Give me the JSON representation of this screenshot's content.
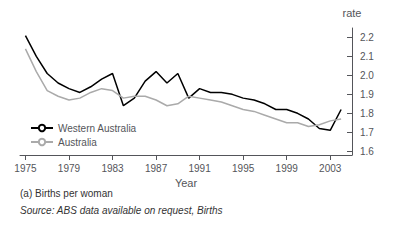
{
  "chart_data": {
    "type": "line",
    "xlabel": "Year",
    "ylabel": "rate",
    "annotations": [
      "(a) Births per woman",
      "Source: ABS data available on request, Births"
    ],
    "xlim": [
      1974.5,
      2005
    ],
    "ylim": [
      1.58,
      2.25
    ],
    "xticks": [
      1975,
      1979,
      1983,
      1987,
      1991,
      1995,
      1999,
      2003
    ],
    "yticks": [
      1.6,
      1.7,
      1.8,
      1.9,
      {
        "value": 2,
        "label": "2.0"
      },
      2.1,
      2.2
    ],
    "grid": false,
    "legend": "lower left",
    "x": [
      1975,
      1976,
      1977,
      1978,
      1979,
      1980,
      1981,
      1982,
      1983,
      1984,
      1985,
      1986,
      1987,
      1988,
      1989,
      1990,
      1991,
      1992,
      1993,
      1994,
      1995,
      1996,
      1997,
      1998,
      1999,
      2000,
      2001,
      2002,
      2003,
      2004
    ],
    "series": [
      {
        "name": "Western Australia",
        "color": "#000000",
        "values": [
          2.21,
          2.1,
          2.01,
          1.96,
          1.93,
          1.91,
          1.94,
          1.98,
          2.01,
          1.84,
          1.88,
          1.97,
          2.02,
          1.96,
          2.01,
          1.88,
          1.93,
          1.91,
          1.91,
          1.9,
          1.88,
          1.87,
          1.85,
          1.82,
          1.82,
          1.8,
          1.77,
          1.72,
          1.71,
          1.82
        ]
      },
      {
        "name": "Australia",
        "color": "#aaaaaa",
        "values": [
          2.14,
          2.02,
          1.92,
          1.89,
          1.87,
          1.88,
          1.91,
          1.93,
          1.92,
          1.88,
          1.89,
          1.89,
          1.87,
          1.84,
          1.85,
          1.89,
          1.88,
          1.87,
          1.86,
          1.84,
          1.82,
          1.81,
          1.79,
          1.77,
          1.75,
          1.75,
          1.73,
          1.74,
          1.76,
          1.77
        ]
      }
    ]
  }
}
